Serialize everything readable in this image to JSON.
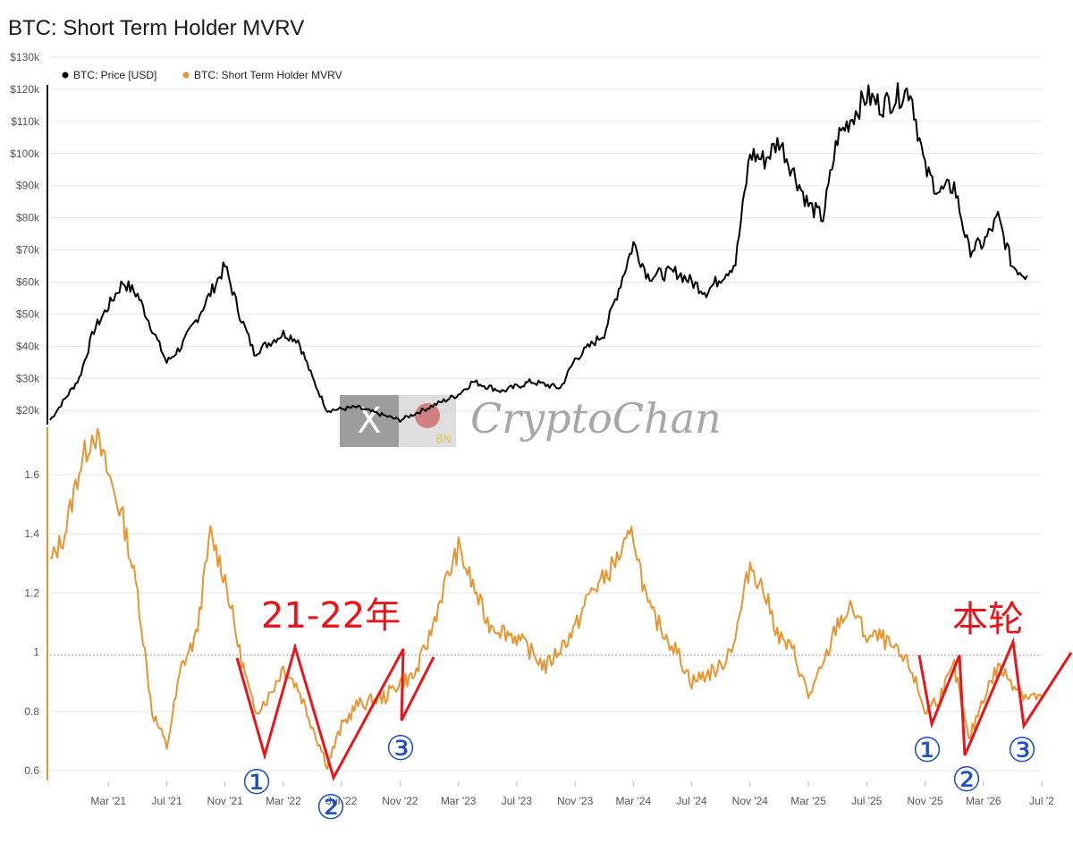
{
  "title": "BTC: Short Term Holder MVRV",
  "colors": {
    "price": "#000000",
    "mvrv": "#e8952f",
    "annotation": "#e8151b",
    "marker": "#1d4fc4",
    "grid": "#e6e6e6"
  },
  "chart_data": [
    {
      "type": "line",
      "legend": [
        "BTC: Price [USD]",
        "BTC: Short Term Holder MVRV"
      ],
      "y_ticks": [
        "$130k",
        "$120k",
        "$110k",
        "$100k",
        "$90k",
        "$80k",
        "$70k",
        "$60k",
        "$50k",
        "$40k",
        "$30k",
        "$20k"
      ],
      "ylim": [
        17000,
        130000
      ],
      "x": [
        "2020-11",
        "2021-01",
        "2021-02",
        "2021-04",
        "2021-05",
        "2021-07",
        "2021-08",
        "2021-09",
        "2021-11",
        "2021-12",
        "2022-01",
        "2022-03",
        "2022-04",
        "2022-05",
        "2022-06",
        "2022-08",
        "2022-11",
        "2023-01",
        "2023-03",
        "2023-04",
        "2023-06",
        "2023-08",
        "2023-10",
        "2023-11",
        "2024-01",
        "2024-03",
        "2024-04",
        "2024-06",
        "2024-08",
        "2024-10",
        "2024-11",
        "2024-12",
        "2025-01",
        "2025-03",
        "2025-04",
        "2025-05",
        "2025-07",
        "2025-08",
        "2025-10",
        "2025-11",
        "2025-12",
        "2026-01",
        "2026-02",
        "2026-03",
        "2026-04",
        "2026-05",
        "2026-06"
      ],
      "series": [
        {
          "name": "BTC: Price [USD]",
          "values": [
            17000,
            30000,
            45000,
            60000,
            56000,
            35000,
            40000,
            48000,
            65000,
            50000,
            38000,
            44000,
            42000,
            30000,
            20000,
            21000,
            17000,
            21000,
            25000,
            29000,
            26000,
            29000,
            27000,
            36000,
            44000,
            72000,
            62000,
            63000,
            57000,
            66000,
            100000,
            98000,
            104000,
            84000,
            80000,
            105000,
            118000,
            115000,
            120000,
            95000,
            88000,
            90000,
            70000,
            72000,
            80000,
            65000,
            62000
          ]
        }
      ]
    },
    {
      "type": "line",
      "y_ticks": [
        "1.6",
        "1.4",
        "1.2",
        "1",
        "0.8",
        "0.6"
      ],
      "ylim": [
        0.57,
        1.76
      ],
      "reference_line": 1,
      "x_ticks": [
        "Mar '21",
        "Jul '21",
        "Nov '21",
        "Mar '22",
        "Jul '22",
        "Nov '22",
        "Mar '23",
        "Jul '23",
        "Nov '23",
        "Mar '24",
        "Jul '24",
        "Nov '24",
        "Mar '25",
        "Jul '25",
        "Nov '25",
        "Mar '26",
        "Jul '2"
      ],
      "x": [
        "2020-11",
        "2020-12",
        "2021-01",
        "2021-02",
        "2021-03",
        "2021-04",
        "2021-05",
        "2021-06",
        "2021-07",
        "2021-08",
        "2021-09",
        "2021-10",
        "2021-11",
        "2021-12",
        "2022-01",
        "2022-02",
        "2022-03",
        "2022-04",
        "2022-05",
        "2022-06",
        "2022-07",
        "2022-08",
        "2022-10",
        "2022-11",
        "2022-12",
        "2023-01",
        "2023-02",
        "2023-03",
        "2023-05",
        "2023-07",
        "2023-09",
        "2023-11",
        "2023-12",
        "2024-01",
        "2024-03",
        "2024-04",
        "2024-06",
        "2024-07",
        "2024-09",
        "2024-10",
        "2024-11",
        "2024-12",
        "2025-01",
        "2025-02",
        "2025-03",
        "2025-04",
        "2025-05",
        "2025-06",
        "2025-07",
        "2025-08",
        "2025-09",
        "2025-10",
        "2025-11",
        "2025-12",
        "2026-01",
        "2026-02",
        "2026-03",
        "2026-04",
        "2026-05",
        "2026-06",
        "2026-07"
      ],
      "series": [
        {
          "name": "BTC: Short Term Holder MVRV",
          "values": [
            1.3,
            1.4,
            1.62,
            1.75,
            1.6,
            1.45,
            1.2,
            0.8,
            0.68,
            0.95,
            1.05,
            1.4,
            1.25,
            1.0,
            0.8,
            0.85,
            0.95,
            0.88,
            0.75,
            0.62,
            0.75,
            0.82,
            0.85,
            0.9,
            0.92,
            1.05,
            1.22,
            1.35,
            1.1,
            1.05,
            0.95,
            1.08,
            1.2,
            1.25,
            1.4,
            1.15,
            1.0,
            0.9,
            0.95,
            1.05,
            1.3,
            1.2,
            1.05,
            1.0,
            0.85,
            0.95,
            1.1,
            1.15,
            1.05,
            1.05,
            1.0,
            0.95,
            0.8,
            0.85,
            0.95,
            0.7,
            0.85,
            0.95,
            0.9,
            0.85,
            0.85
          ]
        }
      ],
      "annotations": [
        {
          "text": "21-22年"
        },
        {
          "text": "本轮"
        },
        {
          "text": "①"
        },
        {
          "text": "②"
        },
        {
          "text": "③"
        },
        {
          "text": "①"
        },
        {
          "text": "②"
        },
        {
          "text": "③"
        }
      ]
    }
  ],
  "watermark": {
    "text": "CryptoChan",
    "badge_letter": "X",
    "badge_tag": "BN"
  }
}
